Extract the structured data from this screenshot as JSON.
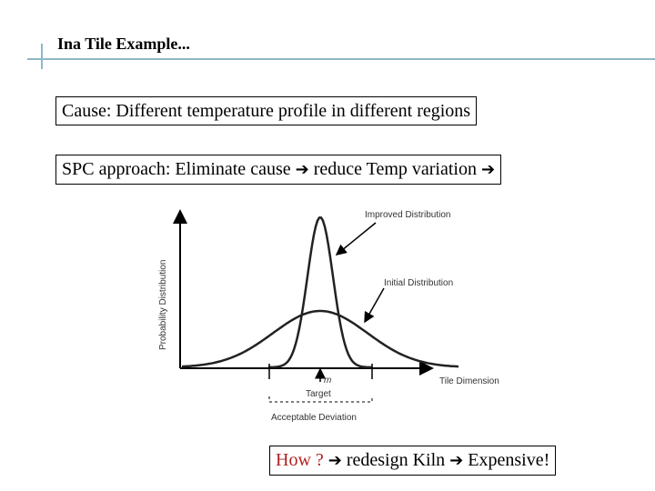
{
  "slide": {
    "title": "Ina Tile Example...",
    "cause_box": "Cause: Different temperature profile in different regions",
    "spc_box": {
      "text": "SPC approach: Eliminate cause",
      "arrow1": "➔",
      "middle": "reduce Temp variation",
      "arrow2": "➔"
    },
    "how_box": {
      "how": "How ?",
      "arrow1": "➔",
      "mid": "redesign Kiln",
      "arrow2": "➔",
      "end": "Expensive!"
    }
  },
  "figure": {
    "ylabel": "Probability Distribution",
    "xlabel": "Tile Dimension",
    "improved_label": "Improved Distribution",
    "initial_label": "Initial Distribution",
    "m_label": "m",
    "target_label": "Target",
    "deviation_label": "Acceptable Deviation"
  },
  "colors": {
    "accent_rule": "#8fb8c6",
    "how_text": "#b22222"
  }
}
